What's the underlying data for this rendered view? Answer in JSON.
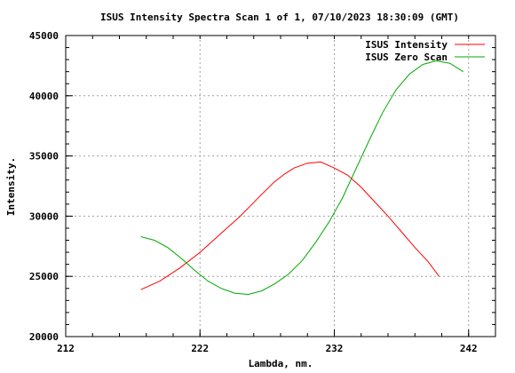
{
  "chart_data": {
    "type": "line",
    "title": "ISUS Intensity Spectra Scan 1 of 1, 07/10/2023 18:30:09 (GMT)",
    "xlabel": "Lambda, nm.",
    "ylabel": "Intensity.",
    "xlim": [
      212,
      244
    ],
    "ylim": [
      20000,
      45000
    ],
    "xticks": [
      212,
      222,
      232,
      242
    ],
    "yticks": [
      20000,
      25000,
      30000,
      35000,
      40000,
      45000
    ],
    "grid": true,
    "legend": "top-right",
    "series": [
      {
        "name": "ISUS Intensity",
        "color": "#ff0000",
        "x": [
          217.6,
          219.0,
          220.5,
          222.0,
          223.5,
          225.0,
          226.5,
          227.5,
          228.3,
          229.0,
          230.0,
          231.0,
          232.0,
          233.0,
          234.0,
          235.0,
          236.0,
          237.0,
          238.0,
          239.0,
          239.8
        ],
        "y": [
          23900,
          24600,
          25700,
          27000,
          28500,
          30000,
          31700,
          32800,
          33500,
          34000,
          34400,
          34500,
          34000,
          33400,
          32400,
          31200,
          30000,
          28700,
          27400,
          26200,
          25000
        ]
      },
      {
        "name": "ISUS Zero Scan",
        "color": "#00aa00",
        "x": [
          217.6,
          218.6,
          219.6,
          220.6,
          221.6,
          222.6,
          223.6,
          224.6,
          225.6,
          226.6,
          227.6,
          228.6,
          229.6,
          230.6,
          231.6,
          232.6,
          233.6,
          234.6,
          235.6,
          236.6,
          237.6,
          238.6,
          239.6,
          240.6,
          241.6
        ],
        "y": [
          28300,
          28000,
          27400,
          26500,
          25500,
          24600,
          24000,
          23600,
          23500,
          23800,
          24400,
          25200,
          26300,
          27800,
          29500,
          31500,
          33900,
          36300,
          38600,
          40500,
          41800,
          42600,
          42900,
          42700,
          42000
        ]
      }
    ]
  }
}
